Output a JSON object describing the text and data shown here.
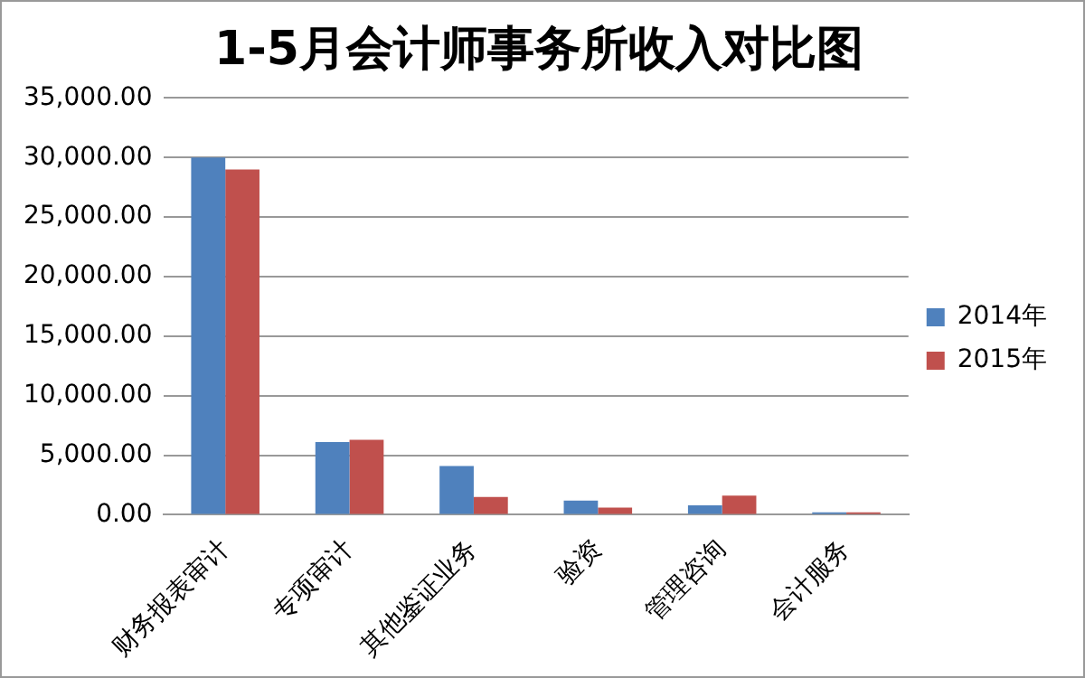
{
  "chart_data": {
    "type": "bar",
    "title": "1-5月会计师事务所收入对比图",
    "categories": [
      "财务报表审计",
      "专项审计",
      "其他鉴证业务",
      "验资",
      "管理咨询",
      "会计服务"
    ],
    "series": [
      {
        "name": "2014年",
        "color": "#4f81bd",
        "values": [
          30000,
          6100,
          4100,
          1200,
          800,
          200
        ]
      },
      {
        "name": "2015年",
        "color": "#c0504d",
        "values": [
          29000,
          6300,
          1500,
          600,
          1600,
          200
        ]
      }
    ],
    "ylim": [
      0,
      35000
    ],
    "yticks": [
      {
        "value": 0,
        "label": "0.00"
      },
      {
        "value": 5000,
        "label": "5,000.00"
      },
      {
        "value": 10000,
        "label": "10,000.00"
      },
      {
        "value": 15000,
        "label": "15,000.00"
      },
      {
        "value": 20000,
        "label": "20,000.00"
      },
      {
        "value": 25000,
        "label": "25,000.00"
      },
      {
        "value": 30000,
        "label": "30,000.00"
      },
      {
        "value": 35000,
        "label": "35,000.00"
      }
    ],
    "grid": "y",
    "legend": "right"
  }
}
